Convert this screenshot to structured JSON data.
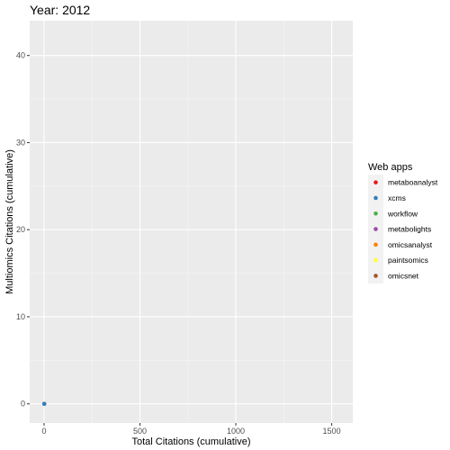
{
  "chart_data": {
    "type": "scatter",
    "title": "Year: 2012",
    "xlabel": "Total Citations (cumulative)",
    "ylabel": "Multiomics Citations (cumulative)",
    "xlim": [
      -75,
      1610
    ],
    "ylim": [
      -2.2,
      44
    ],
    "x_ticks": [
      0,
      500,
      1000,
      1500
    ],
    "y_ticks": [
      0,
      10,
      20,
      30,
      40
    ],
    "grid": true,
    "legend_title": "Web apps",
    "legend_position": "right",
    "series": [
      {
        "name": "metaboanalyst",
        "color": "#e41a1c",
        "points": []
      },
      {
        "name": "xcms",
        "color": "#377eb8",
        "points": [
          [
            1,
            0
          ]
        ]
      },
      {
        "name": "workflow",
        "color": "#4daf4a",
        "points": []
      },
      {
        "name": "metabolights",
        "color": "#984ea3",
        "points": []
      },
      {
        "name": "omicsanalyst",
        "color": "#ff7f00",
        "points": []
      },
      {
        "name": "paintsomics",
        "color": "#ffff33",
        "points": []
      },
      {
        "name": "omicsnet",
        "color": "#a65628",
        "points": []
      }
    ]
  }
}
